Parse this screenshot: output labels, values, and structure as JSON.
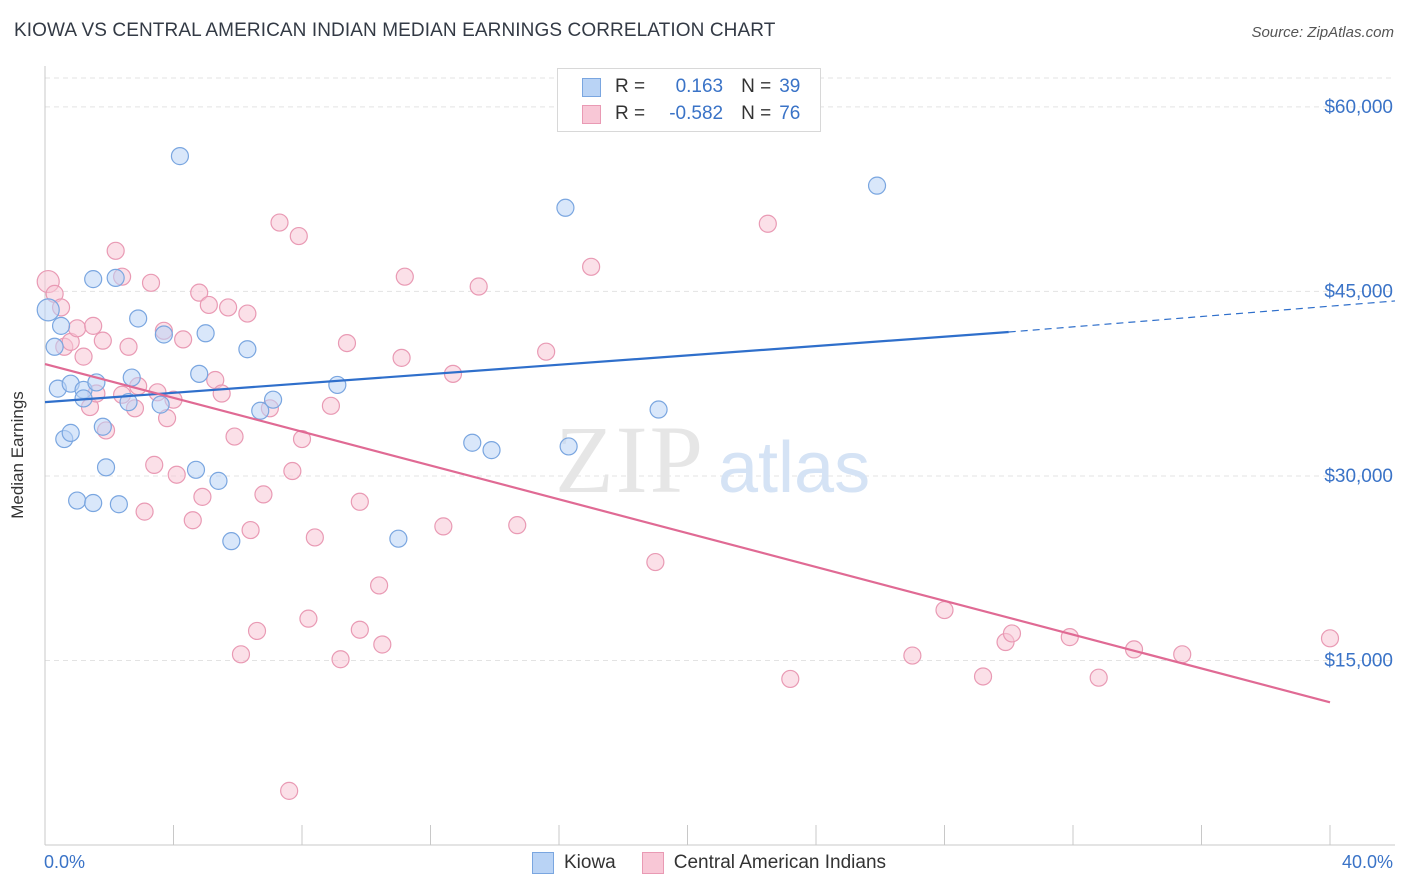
{
  "header": {
    "title": "KIOWA VS CENTRAL AMERICAN INDIAN MEDIAN EARNINGS CORRELATION CHART",
    "source": "Source: ZipAtlas.com"
  },
  "watermark": {
    "zip": "ZIP",
    "atlas": "atlas"
  },
  "legend_top": {
    "rows": [
      {
        "r_label": "R =",
        "r_value": "0.163",
        "n_label": "N =",
        "n_value": "39"
      },
      {
        "r_label": "R =",
        "r_value": "-0.582",
        "n_label": "N =",
        "n_value": "76"
      }
    ]
  },
  "legend_bottom": {
    "items": [
      "Kiowa",
      "Central American Indians"
    ]
  },
  "colors": {
    "kiowa_fill": "#b9d3f5",
    "kiowa_stroke": "#7aa6e0",
    "kiowa_line": "#2f6fcb",
    "cai_fill": "#f8c7d6",
    "cai_stroke": "#e99ab4",
    "cai_line": "#e06a94",
    "axis_label": "#3a73c7",
    "grid": "#e3e3e3"
  },
  "chart_data": {
    "type": "scatter",
    "title": "KIOWA VS CENTRAL AMERICAN INDIAN MEDIAN EARNINGS CORRELATION CHART",
    "xlabel": "",
    "ylabel": "Median Earnings",
    "xlim": [
      0,
      40
    ],
    "ylim": [
      0,
      63000
    ],
    "x_tick_labels": [
      "0.0%",
      "40.0%"
    ],
    "y_ticks": [
      15000,
      30000,
      45000,
      60000
    ],
    "y_tick_labels": [
      "$15,000",
      "$30,000",
      "$45,000",
      "$60,000"
    ],
    "grid": true,
    "legend_position": "top-center",
    "series": [
      {
        "name": "Kiowa",
        "r": 0.163,
        "n": 39,
        "trend": {
          "x0": 0,
          "y0": 36000,
          "x1": 30,
          "y1": 41700,
          "dashed_to_x": 40,
          "dashed_to_y": 43800
        },
        "points": [
          [
            0.1,
            43500
          ],
          [
            0.4,
            37100
          ],
          [
            0.5,
            42200
          ],
          [
            0.3,
            40500
          ],
          [
            0.6,
            33000
          ],
          [
            0.8,
            33500
          ],
          [
            0.8,
            37500
          ],
          [
            1.0,
            28000
          ],
          [
            1.2,
            37000
          ],
          [
            1.2,
            36300
          ],
          [
            1.5,
            27800
          ],
          [
            1.5,
            46000
          ],
          [
            1.6,
            37600
          ],
          [
            1.8,
            34000
          ],
          [
            1.9,
            30700
          ],
          [
            2.2,
            46100
          ],
          [
            2.3,
            27700
          ],
          [
            2.6,
            36000
          ],
          [
            2.7,
            38000
          ],
          [
            2.9,
            42800
          ],
          [
            3.6,
            35800
          ],
          [
            3.7,
            41500
          ],
          [
            4.2,
            56000
          ],
          [
            4.7,
            30500
          ],
          [
            4.8,
            38300
          ],
          [
            5.0,
            41600
          ],
          [
            5.4,
            29600
          ],
          [
            5.8,
            24700
          ],
          [
            6.3,
            40300
          ],
          [
            6.7,
            35300
          ],
          [
            7.1,
            36200
          ],
          [
            9.1,
            37400
          ],
          [
            11.0,
            24900
          ],
          [
            13.3,
            32700
          ],
          [
            13.9,
            32100
          ],
          [
            16.2,
            51800
          ],
          [
            16.3,
            32400
          ],
          [
            19.1,
            35400
          ],
          [
            25.9,
            53600
          ]
        ]
      },
      {
        "name": "Central American Indians",
        "r": -0.582,
        "n": 76,
        "trend": {
          "x0": 0,
          "y0": 39100,
          "x1": 40,
          "y1": 11600
        },
        "points": [
          [
            0.1,
            45800
          ],
          [
            0.3,
            44800
          ],
          [
            0.5,
            43700
          ],
          [
            0.6,
            40500
          ],
          [
            0.8,
            40900
          ],
          [
            1.0,
            42000
          ],
          [
            1.2,
            39700
          ],
          [
            1.4,
            35600
          ],
          [
            1.5,
            42200
          ],
          [
            1.6,
            36700
          ],
          [
            1.8,
            41000
          ],
          [
            1.9,
            33700
          ],
          [
            2.2,
            48300
          ],
          [
            2.4,
            46200
          ],
          [
            2.4,
            36600
          ],
          [
            2.6,
            40500
          ],
          [
            2.8,
            35500
          ],
          [
            2.9,
            37300
          ],
          [
            3.1,
            27100
          ],
          [
            3.3,
            45700
          ],
          [
            3.4,
            30900
          ],
          [
            3.5,
            36800
          ],
          [
            3.7,
            41800
          ],
          [
            3.8,
            34700
          ],
          [
            4.0,
            36200
          ],
          [
            4.1,
            30100
          ],
          [
            4.3,
            41100
          ],
          [
            4.6,
            26400
          ],
          [
            4.8,
            44900
          ],
          [
            4.9,
            28300
          ],
          [
            5.1,
            43900
          ],
          [
            5.3,
            37800
          ],
          [
            5.5,
            36700
          ],
          [
            5.7,
            43700
          ],
          [
            5.9,
            33200
          ],
          [
            6.1,
            15500
          ],
          [
            6.3,
            43200
          ],
          [
            6.4,
            25600
          ],
          [
            6.6,
            17400
          ],
          [
            6.8,
            28500
          ],
          [
            7.0,
            35500
          ],
          [
            7.3,
            50600
          ],
          [
            7.6,
            4400
          ],
          [
            7.7,
            30400
          ],
          [
            7.9,
            49500
          ],
          [
            8.0,
            33000
          ],
          [
            8.2,
            18400
          ],
          [
            8.4,
            25000
          ],
          [
            8.9,
            35700
          ],
          [
            9.2,
            15100
          ],
          [
            9.4,
            40800
          ],
          [
            9.8,
            27900
          ],
          [
            9.8,
            17500
          ],
          [
            10.4,
            21100
          ],
          [
            10.5,
            16300
          ],
          [
            11.1,
            39600
          ],
          [
            11.2,
            46200
          ],
          [
            12.4,
            25900
          ],
          [
            12.7,
            38300
          ],
          [
            13.5,
            45400
          ],
          [
            14.7,
            26000
          ],
          [
            15.6,
            40100
          ],
          [
            17.0,
            47000
          ],
          [
            19.0,
            23000
          ],
          [
            22.5,
            50500
          ],
          [
            23.2,
            13500
          ],
          [
            27.0,
            15400
          ],
          [
            28.0,
            19100
          ],
          [
            29.2,
            13700
          ],
          [
            29.9,
            16500
          ],
          [
            30.1,
            17200
          ],
          [
            31.9,
            16900
          ],
          [
            32.8,
            13600
          ],
          [
            33.9,
            15900
          ],
          [
            35.4,
            15500
          ],
          [
            40.0,
            16800
          ]
        ]
      }
    ]
  }
}
